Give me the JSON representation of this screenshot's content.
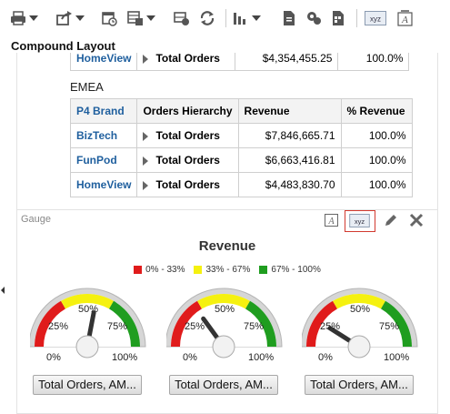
{
  "page": {
    "title": "Compound Layout"
  },
  "toolbar": {
    "buttons": [
      {
        "name": "print-icon",
        "caret": true
      },
      {
        "name": "export-icon",
        "caret": true
      },
      {
        "name": "schedule-icon",
        "caret": false
      },
      {
        "name": "refresh-data-icon",
        "caret": true
      },
      {
        "name": "auto-refresh-icon",
        "caret": false
      },
      {
        "name": "refresh-icon",
        "caret": false
      },
      {
        "name": "new-view-icon",
        "caret": true
      },
      {
        "name": "new-document-icon",
        "caret": false
      },
      {
        "name": "new-settings-icon",
        "caret": false
      },
      {
        "name": "new-calc-icon",
        "caret": false
      },
      {
        "name": "xyz-icon",
        "caret": false
      },
      {
        "name": "text-icon",
        "caret": false
      }
    ]
  },
  "prev_table": {
    "brand": "HomeView",
    "hierarchy": "Total Orders",
    "revenue": "$4,354,455.25",
    "pct": "100.0%"
  },
  "region": "EMEA",
  "pivot": {
    "headers": [
      "P4 Brand",
      "Orders Hierarchy",
      "Revenue",
      "% Revenue"
    ],
    "rows": [
      {
        "brand": "BizTech",
        "hierarchy": "Total Orders",
        "revenue": "$7,846,665.71",
        "pct": "100.0%"
      },
      {
        "brand": "FunPod",
        "hierarchy": "Total Orders",
        "revenue": "$6,663,416.81",
        "pct": "100.0%"
      },
      {
        "brand": "HomeView",
        "hierarchy": "Total Orders",
        "revenue": "$4,483,830.70",
        "pct": "100.0%"
      }
    ]
  },
  "gauge_panel": {
    "label": "Gauge",
    "icons": [
      "text-icon",
      "xyz-icon",
      "edit-icon",
      "close-icon"
    ],
    "title": "Revenue",
    "legend": [
      {
        "label": "0% - 33%",
        "color": "#e01b1b"
      },
      {
        "label": "33% - 67%",
        "color": "#f5f10f"
      },
      {
        "label": "67% - 100%",
        "color": "#1f9d1f"
      }
    ],
    "tick_labels": {
      "t0": "0%",
      "t25": "25%",
      "t50": "50%",
      "t75": "75%",
      "t100": "100%"
    },
    "gauges": [
      {
        "button_label": "Total Orders, AM...",
        "value": 0.56
      },
      {
        "button_label": "Total Orders, AM...",
        "value": 0.3
      },
      {
        "button_label": "Total Orders, AM...",
        "value": 0.18
      }
    ]
  }
}
